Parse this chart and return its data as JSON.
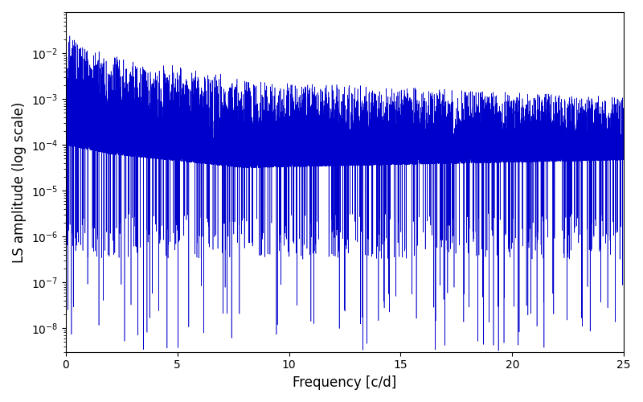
{
  "xlabel": "Frequency [c/d]",
  "ylabel": "LS amplitude (log scale)",
  "line_color": "#0000cc",
  "xlim": [
    0,
    25
  ],
  "ylim": [
    3e-09,
    0.08
  ],
  "background_color": "#ffffff",
  "figsize": [
    8.0,
    5.0
  ],
  "dpi": 100,
  "freq_max": 25.0,
  "n_points": 15000,
  "seed": 12345
}
